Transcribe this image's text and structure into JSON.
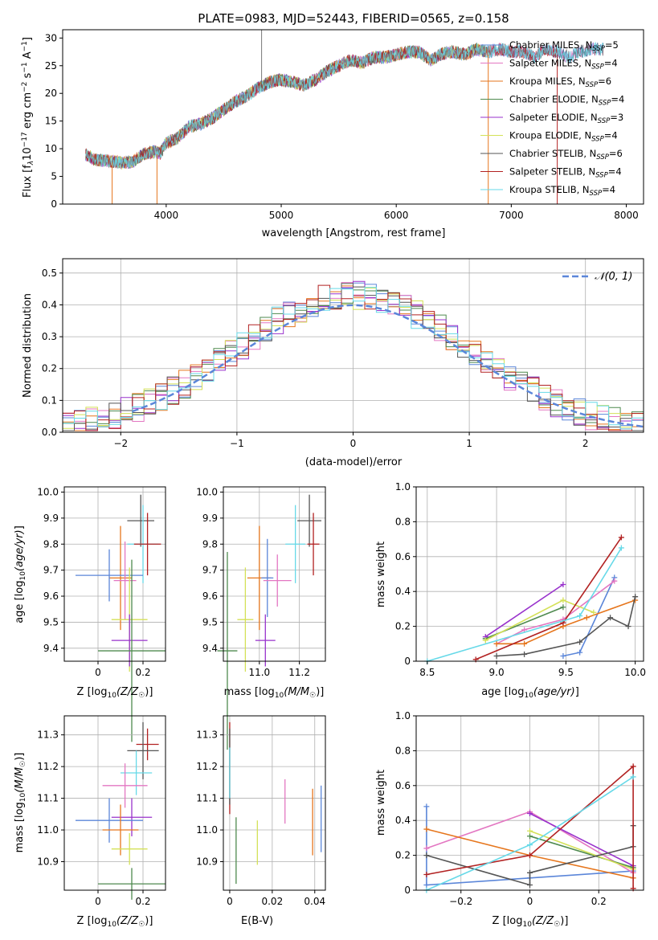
{
  "colors": {
    "cm": "#5b86d9",
    "sm": "#8a2be2",
    "km": "#e6761d",
    "ce": "#4f8a4f",
    "se": "#9932cc",
    "ke": "#d4e157",
    "cs": "#555555",
    "ss": "#b22222",
    "ks": "#66d9e8",
    "pink": "#e377c2",
    "gauss": "#5b86d9"
  },
  "legend_series": [
    {
      "label": "Chabrier MILES, N",
      "sub": "SSP",
      "suffix": "=5",
      "color": "#5b86d9"
    },
    {
      "label": "Salpeter MILES, N",
      "sub": "SSP",
      "suffix": "=4",
      "color": "#e377c2"
    },
    {
      "label": "Kroupa MILES, N",
      "sub": "SSP",
      "suffix": "=6",
      "color": "#e6761d"
    },
    {
      "label": "Chabrier ELODIE, N",
      "sub": "SSP",
      "suffix": "=4",
      "color": "#4f8a4f"
    },
    {
      "label": "Salpeter ELODIE, N",
      "sub": "SSP",
      "suffix": "=3",
      "color": "#9932cc"
    },
    {
      "label": "Kroupa ELODIE, N",
      "sub": "SSP",
      "suffix": "=4",
      "color": "#d4e157"
    },
    {
      "label": "Chabrier STELIB, N",
      "sub": "SSP",
      "suffix": "=6",
      "color": "#555555"
    },
    {
      "label": "Salpeter STELIB, N",
      "sub": "SSP",
      "suffix": "=4",
      "color": "#b22222"
    },
    {
      "label": "Kroupa STELIB, N",
      "sub": "SSP",
      "suffix": "=4",
      "color": "#66d9e8"
    }
  ],
  "chart_data": [
    {
      "type": "line",
      "title": "PLATE=0983, MJD=52443, FIBERID=0565, z=0.158",
      "xlabel": "wavelength [Angstrom, rest frame]",
      "ylabel": "Flux [f",
      "xlim": [
        3100,
        8150
      ],
      "ylim": [
        0,
        31.5
      ],
      "xticks": [
        4000,
        5000,
        6000,
        7000,
        8000
      ],
      "yticks": [
        0,
        5,
        10,
        15,
        20,
        25,
        30
      ],
      "grid": false,
      "legend": "top-right",
      "spectrum_anchors": [
        [
          3300,
          9
        ],
        [
          3380,
          8
        ],
        [
          3500,
          7.8
        ],
        [
          3600,
          7.5
        ],
        [
          3700,
          7.6
        ],
        [
          3800,
          9
        ],
        [
          3900,
          9.5
        ],
        [
          3950,
          9.2
        ],
        [
          4000,
          11
        ],
        [
          4100,
          12
        ],
        [
          4200,
          14
        ],
        [
          4300,
          14.5
        ],
        [
          4400,
          15.5
        ],
        [
          4500,
          17
        ],
        [
          4600,
          18.5
        ],
        [
          4700,
          19.5
        ],
        [
          4800,
          21
        ],
        [
          4900,
          22
        ],
        [
          5000,
          22.5
        ],
        [
          5100,
          22
        ],
        [
          5200,
          21.5
        ],
        [
          5300,
          22.5
        ],
        [
          5400,
          24
        ],
        [
          5500,
          25
        ],
        [
          5600,
          26
        ],
        [
          5700,
          25.5
        ],
        [
          5800,
          26.5
        ],
        [
          5900,
          26.5
        ],
        [
          6000,
          27
        ],
        [
          6100,
          27.5
        ],
        [
          6200,
          27.5
        ],
        [
          6300,
          26
        ],
        [
          6400,
          27.2
        ],
        [
          6500,
          27.5
        ],
        [
          6600,
          27
        ],
        [
          6700,
          28
        ],
        [
          6800,
          27.5
        ],
        [
          6900,
          28
        ],
        [
          7000,
          27.5
        ],
        [
          7100,
          27.5
        ],
        [
          7200,
          26.5
        ],
        [
          7300,
          28
        ],
        [
          7400,
          27.5
        ],
        [
          7500,
          26.5
        ],
        [
          7600,
          27.5
        ],
        [
          7700,
          28
        ]
      ]
    },
    {
      "type": "bar",
      "xlabel": "(data-model)/error",
      "ylabel": "Normed distribution",
      "xlim": [
        -2.5,
        2.5
      ],
      "ylim": [
        0,
        0.545
      ],
      "xticks": [
        -2,
        -1,
        0,
        1,
        2
      ],
      "yticks": [
        0.0,
        0.1,
        0.2,
        0.3,
        0.4,
        0.5
      ],
      "grid": true,
      "bins": {
        "start": -2.5,
        "width": 0.1
      },
      "gaussian": {
        "mean": 0,
        "sigma": 1,
        "x_from": -1.9,
        "x_to": 2.5
      }
    },
    {
      "type": "scatter",
      "xlabel": "Z [log",
      "ylabel": "age  [log",
      "xlim": [
        -0.15,
        0.3
      ],
      "ylim": [
        9.35,
        10.02
      ],
      "xticks": [
        0.0,
        0.2
      ],
      "yticks": [
        9.4,
        9.5,
        9.6,
        9.7,
        9.8,
        9.9,
        10.0
      ],
      "grid": true,
      "points": [
        {
          "x": 0.19,
          "xe": 0.06,
          "y": 9.89,
          "ye": 0.1,
          "c": "cs"
        },
        {
          "x": 0.2,
          "xe": 0.07,
          "y": 9.8,
          "ye": 0.15,
          "c": "ks"
        },
        {
          "x": 0.22,
          "xe": 0.06,
          "y": 9.8,
          "ye": 0.12,
          "c": "ss"
        },
        {
          "x": 0.1,
          "xe": 0.05,
          "y": 9.67,
          "ye": 0.2,
          "c": "km"
        },
        {
          "x": 0.05,
          "xe": 0.15,
          "y": 9.68,
          "ye": 0.1,
          "c": "cm"
        },
        {
          "x": 0.12,
          "xe": 0.05,
          "y": 9.66,
          "ye": 0.15,
          "c": "pink"
        },
        {
          "x": 0.14,
          "xe": 0.08,
          "y": 9.51,
          "ye": 0.2,
          "c": "ke"
        },
        {
          "x": 0.14,
          "xe": 0.08,
          "y": 9.43,
          "ye": 0.1,
          "c": "se"
        },
        {
          "x": 0.15,
          "xe": 0.15,
          "y": 9.39,
          "ye": 0.35,
          "c": "ce"
        }
      ]
    },
    {
      "type": "scatter",
      "xlabel": "mass [log",
      "ylabel": "",
      "xlim": [
        10.82,
        11.33
      ],
      "ylim": [
        9.35,
        10.02
      ],
      "xticks": [
        11.0,
        11.2
      ],
      "yticks": [
        9.4,
        9.5,
        9.6,
        9.7,
        9.8,
        9.9,
        10.0
      ],
      "grid": true,
      "points": [
        {
          "x": 11.25,
          "xe": 0.06,
          "y": 9.89,
          "ye": 0.1,
          "c": "cs"
        },
        {
          "x": 11.18,
          "xe": 0.05,
          "y": 9.8,
          "ye": 0.15,
          "c": "ks"
        },
        {
          "x": 11.27,
          "xe": 0.03,
          "y": 9.8,
          "ye": 0.12,
          "c": "ss"
        },
        {
          "x": 11.0,
          "xe": 0.06,
          "y": 9.67,
          "ye": 0.2,
          "c": "km"
        },
        {
          "x": 11.04,
          "xe": 0.03,
          "y": 9.67,
          "ye": 0.15,
          "c": "cm"
        },
        {
          "x": 11.09,
          "xe": 0.07,
          "y": 9.66,
          "ye": 0.1,
          "c": "pink"
        },
        {
          "x": 10.93,
          "xe": 0.04,
          "y": 9.51,
          "ye": 0.2,
          "c": "ke"
        },
        {
          "x": 11.03,
          "xe": 0.05,
          "y": 9.43,
          "ye": 0.1,
          "c": "se"
        },
        {
          "x": 10.84,
          "xe": 0.05,
          "y": 9.39,
          "ye": 0.38,
          "c": "ce"
        }
      ]
    },
    {
      "type": "line",
      "xlabel": "age  [log",
      "ylabel": "mass weight",
      "xlim": [
        8.42,
        10.06
      ],
      "ylim": [
        0,
        1.0
      ],
      "xticks": [
        8.5,
        9.0,
        9.5,
        10.0
      ],
      "yticks": [
        0.0,
        0.2,
        0.4,
        0.6,
        0.8,
        1.0
      ],
      "grid": true,
      "series": [
        {
          "c": "cm",
          "pts": [
            [
              9.48,
              0.03
            ],
            [
              9.6,
              0.05
            ],
            [
              9.85,
              0.48
            ]
          ]
        },
        {
          "c": "pink",
          "pts": [
            [
              9.0,
              0.1
            ],
            [
              9.2,
              0.18
            ],
            [
              9.48,
              0.24
            ],
            [
              9.85,
              0.46
            ]
          ]
        },
        {
          "c": "km",
          "pts": [
            [
              9.0,
              0.1
            ],
            [
              9.2,
              0.1
            ],
            [
              9.48,
              0.2
            ],
            [
              9.65,
              0.25
            ],
            [
              10.0,
              0.35
            ]
          ]
        },
        {
          "c": "ce",
          "pts": [
            [
              8.92,
              0.13
            ],
            [
              9.48,
              0.31
            ]
          ]
        },
        {
          "c": "se",
          "pts": [
            [
              8.92,
              0.14
            ],
            [
              9.48,
              0.44
            ]
          ]
        },
        {
          "c": "ke",
          "pts": [
            [
              8.92,
              0.12
            ],
            [
              9.48,
              0.35
            ],
            [
              9.7,
              0.28
            ]
          ]
        },
        {
          "c": "cs",
          "pts": [
            [
              9.0,
              0.03
            ],
            [
              9.2,
              0.04
            ],
            [
              9.6,
              0.11
            ],
            [
              9.82,
              0.25
            ],
            [
              9.95,
              0.2
            ],
            [
              10.0,
              0.37
            ]
          ]
        },
        {
          "c": "ss",
          "pts": [
            [
              8.85,
              0.01
            ],
            [
              9.48,
              0.22
            ],
            [
              9.9,
              0.71
            ]
          ]
        },
        {
          "c": "ks",
          "pts": [
            [
              8.5,
              0.0
            ],
            [
              9.6,
              0.26
            ],
            [
              9.9,
              0.65
            ]
          ]
        }
      ]
    },
    {
      "type": "scatter",
      "xlabel": "Z [log",
      "ylabel": "mass [log",
      "xlim": [
        -0.15,
        0.3
      ],
      "ylim": [
        10.81,
        11.36
      ],
      "xticks": [
        0.0,
        0.2
      ],
      "yticks": [
        10.9,
        11.0,
        11.1,
        11.2,
        11.3
      ],
      "grid": true,
      "points": [
        {
          "x": 0.22,
          "xe": 0.05,
          "y": 11.27,
          "ye": 0.05,
          "c": "ss"
        },
        {
          "x": 0.2,
          "xe": 0.07,
          "y": 11.25,
          "ye": 0.09,
          "c": "cs"
        },
        {
          "x": 0.17,
          "xe": 0.07,
          "y": 11.18,
          "ye": 0.07,
          "c": "ks"
        },
        {
          "x": 0.12,
          "xe": 0.1,
          "y": 11.14,
          "ye": 0.07,
          "c": "pink"
        },
        {
          "x": 0.15,
          "xe": 0.09,
          "y": 11.04,
          "ye": 0.06,
          "c": "se"
        },
        {
          "x": 0.05,
          "xe": 0.15,
          "y": 11.03,
          "ye": 0.07,
          "c": "cm"
        },
        {
          "x": 0.1,
          "xe": 0.08,
          "y": 11.0,
          "ye": 0.08,
          "c": "km"
        },
        {
          "x": 0.14,
          "xe": 0.08,
          "y": 10.94,
          "ye": 0.05,
          "c": "ke"
        },
        {
          "x": 0.15,
          "xe": 0.15,
          "y": 10.83,
          "ye": 0.05,
          "c": "ce"
        }
      ]
    },
    {
      "type": "scatter",
      "xlabel": "E(B-V)",
      "ylabel": "",
      "xlim": [
        -0.003,
        0.045
      ],
      "ylim": [
        10.81,
        11.36
      ],
      "xticks": [
        0.0,
        0.02,
        0.04
      ],
      "yticks": [
        10.9,
        11.0,
        11.1,
        11.2,
        11.3
      ],
      "grid": true,
      "bars": [
        {
          "x": 0.0,
          "y1": 11.05,
          "y2": 11.34,
          "c": "ss"
        },
        {
          "x": 0.0,
          "y1": 11.08,
          "y2": 11.32,
          "c": "cs"
        },
        {
          "x": 0.0,
          "y1": 11.1,
          "y2": 11.26,
          "c": "ks"
        },
        {
          "x": 0.003,
          "y1": 10.83,
          "y2": 11.04,
          "c": "ce"
        },
        {
          "x": 0.013,
          "y1": 10.89,
          "y2": 11.03,
          "c": "ke"
        },
        {
          "x": 0.026,
          "y1": 11.02,
          "y2": 11.16,
          "c": "pink"
        },
        {
          "x": 0.039,
          "y1": 10.92,
          "y2": 11.13,
          "c": "km"
        },
        {
          "x": 0.043,
          "y1": 10.93,
          "y2": 11.14,
          "c": "cm"
        }
      ]
    },
    {
      "type": "line",
      "xlabel": "Z [log",
      "ylabel": "mass weight",
      "xlim": [
        -0.33,
        0.33
      ],
      "ylim": [
        0,
        1.0
      ],
      "xticks": [
        -0.2,
        0.0,
        0.2
      ],
      "yticks": [
        0.0,
        0.2,
        0.4,
        0.6,
        0.8,
        1.0
      ],
      "grid": true,
      "series": [
        {
          "c": "cm",
          "pts": [
            [
              -0.3,
              0.48
            ],
            [
              -0.3,
              0.03
            ],
            [
              0.0,
              0.07
            ],
            [
              0.3,
              0.11
            ]
          ]
        },
        {
          "c": "pink",
          "pts": [
            [
              -0.3,
              0.24
            ],
            [
              0.0,
              0.45
            ],
            [
              0.3,
              0.1
            ]
          ]
        },
        {
          "c": "km",
          "pts": [
            [
              -0.3,
              0.35
            ],
            [
              0.0,
              0.2
            ],
            [
              0.3,
              0.07
            ]
          ]
        },
        {
          "c": "ce",
          "pts": [
            [
              0.0,
              0.31
            ],
            [
              0.3,
              0.13
            ]
          ]
        },
        {
          "c": "se",
          "pts": [
            [
              0.0,
              0.44
            ],
            [
              0.3,
              0.14
            ]
          ]
        },
        {
          "c": "ke",
          "pts": [
            [
              0.0,
              0.34
            ],
            [
              0.3,
              0.12
            ]
          ]
        },
        {
          "c": "cs",
          "pts": [
            [
              -0.3,
              0.2
            ],
            [
              0.0,
              0.03
            ],
            [
              0.0,
              0.1
            ],
            [
              0.3,
              0.25
            ],
            [
              0.3,
              0.37
            ]
          ]
        },
        {
          "c": "ss",
          "pts": [
            [
              -0.3,
              0.09
            ],
            [
              0.0,
              0.2
            ],
            [
              0.3,
              0.71
            ],
            [
              0.3,
              0.01
            ]
          ]
        },
        {
          "c": "ks",
          "pts": [
            [
              -0.3,
              0.0
            ],
            [
              0.0,
              0.26
            ],
            [
              0.3,
              0.65
            ]
          ]
        }
      ]
    }
  ],
  "labels": {
    "ylabel_top_tail": "10",
    "ylabel_top_exp": "−17",
    "ylabel_top_rest": " erg cm",
    "gauss_legend": "𝒩(0, 1)",
    "z_unit": "(Z/Z",
    "mass_unit": "(M/M",
    "age_unit": "(age/yr)"
  }
}
